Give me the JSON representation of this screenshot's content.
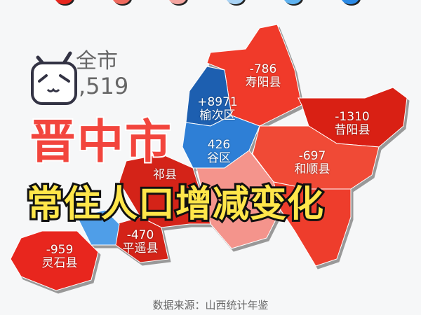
{
  "legend_colors": [
    "#e8261e",
    "#f06a5e",
    "#f4a5a0",
    "#a9d3f5",
    "#5eb2f0",
    "#2b8ae6"
  ],
  "summary": {
    "label": "全市",
    "value": ",519"
  },
  "title": "晋中市",
  "subtitle": "常住人口增减变化",
  "source": "数据来源：山西统计年鉴",
  "regions": [
    {
      "name": "寿阳县",
      "value": "-786",
      "color": "#f03a2a"
    },
    {
      "name": "榆次区",
      "value": "+8971",
      "color": "#1d5fb0"
    },
    {
      "name": "昔阳县",
      "value": "-1310",
      "color": "#d92014"
    },
    {
      "name": "谷区",
      "value": "426",
      "color": "#2e7fd6"
    },
    {
      "name": "和顺县",
      "value": "-697",
      "color": "#f04a36"
    },
    {
      "name": "祁县",
      "value": "",
      "color": "#d42318"
    },
    {
      "name": "平遥县",
      "value": "-470",
      "color": "#d42318"
    },
    {
      "name": "灵石县",
      "value": "-959",
      "color": "#e8261e"
    }
  ]
}
